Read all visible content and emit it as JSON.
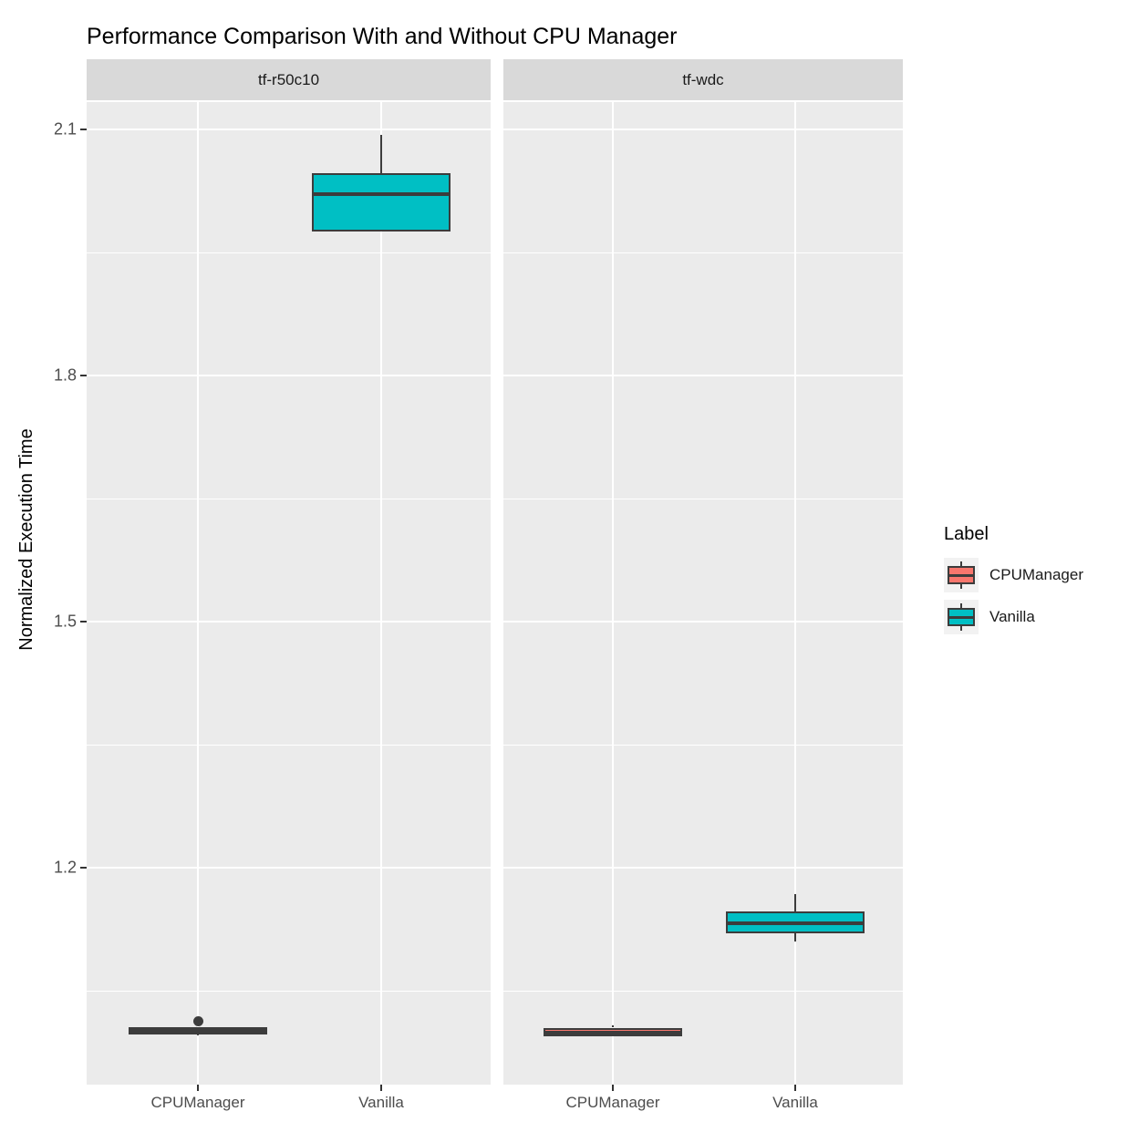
{
  "title": "Performance Comparison With and Without CPU Manager",
  "colors": {
    "cpumanager": "#F8766D",
    "vanilla": "#00BFC4",
    "panel_bg": "#EBEBEB",
    "strip_bg": "#D9D9D9",
    "stroke": "#3C3C3C",
    "grid": "#FFFFFF",
    "tick_text": "#4D4D4D"
  },
  "legend": {
    "title": "Label",
    "entries": [
      {
        "label": "CPUManager",
        "color": "#F8766D"
      },
      {
        "label": "Vanilla",
        "color": "#00BFC4"
      }
    ]
  },
  "chart_data": {
    "type": "boxplot",
    "title": "Performance Comparison With and Without CPU Manager",
    "xlabel": "",
    "ylabel": "Normalized Execution Time",
    "ylim": [
      0.94,
      2.13
    ],
    "y_major_ticks": [
      2.1,
      1.8,
      1.5,
      1.2
    ],
    "y_minor_gridlines": [
      1.95,
      1.65,
      1.35,
      1.05
    ],
    "grid": "on",
    "legend_position": "right",
    "legend_title": "Label",
    "categories": [
      "CPUManager",
      "Vanilla"
    ],
    "facets": [
      {
        "label": "tf-r50c10",
        "boxes": [
          {
            "group": "CPUManager",
            "series": "CPUManager",
            "color": "#F8766D",
            "whisker_low": 0.995,
            "q1": 0.997,
            "median": 1.001,
            "q3": 1.006,
            "whisker_high": 1.006,
            "outliers": [
              1.013
            ]
          },
          {
            "group": "Vanilla",
            "series": "Vanilla",
            "color": "#00BFC4",
            "whisker_low": 1.976,
            "q1": 1.976,
            "median": 2.021,
            "q3": 2.047,
            "whisker_high": 2.093,
            "outliers": []
          }
        ]
      },
      {
        "label": "tf-wdc",
        "boxes": [
          {
            "group": "CPUManager",
            "series": "CPUManager",
            "color": "#F8766D",
            "whisker_low": 0.994,
            "q1": 0.994,
            "median": 0.999,
            "q3": 1.005,
            "whisker_high": 1.008,
            "outliers": []
          },
          {
            "group": "Vanilla",
            "series": "Vanilla",
            "color": "#00BFC4",
            "whisker_low": 1.11,
            "q1": 1.12,
            "median": 1.132,
            "q3": 1.147,
            "whisker_high": 1.168,
            "outliers": []
          }
        ]
      }
    ]
  }
}
